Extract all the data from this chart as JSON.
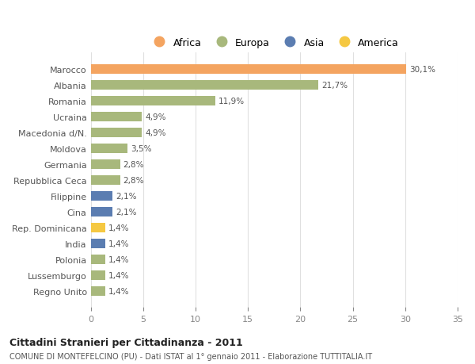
{
  "countries": [
    "Marocco",
    "Albania",
    "Romania",
    "Ucraina",
    "Macedonia d/N.",
    "Moldova",
    "Germania",
    "Repubblica Ceca",
    "Filippine",
    "Cina",
    "Rep. Dominicana",
    "India",
    "Polonia",
    "Lussemburgo",
    "Regno Unito"
  ],
  "values": [
    30.1,
    21.7,
    11.9,
    4.9,
    4.9,
    3.5,
    2.8,
    2.8,
    2.1,
    2.1,
    1.4,
    1.4,
    1.4,
    1.4,
    1.4
  ],
  "labels": [
    "30,1%",
    "21,7%",
    "11,9%",
    "4,9%",
    "4,9%",
    "3,5%",
    "2,8%",
    "2,8%",
    "2,1%",
    "2,1%",
    "1,4%",
    "1,4%",
    "1,4%",
    "1,4%",
    "1,4%"
  ],
  "colors": [
    "#F4A460",
    "#A8B87C",
    "#A8B87C",
    "#A8B87C",
    "#A8B87C",
    "#A8B87C",
    "#A8B87C",
    "#A8B87C",
    "#5B7DB1",
    "#5B7DB1",
    "#F5C842",
    "#5B7DB1",
    "#A8B87C",
    "#A8B87C",
    "#A8B87C"
  ],
  "legend_labels": [
    "Africa",
    "Europa",
    "Asia",
    "America"
  ],
  "legend_colors": [
    "#F4A460",
    "#A8B87C",
    "#5B7DB1",
    "#F5C842"
  ],
  "title": "Cittadini Stranieri per Cittadinanza - 2011",
  "subtitle": "COMUNE DI MONTEFELCINO (PU) - Dati ISTAT al 1° gennaio 2011 - Elaborazione TUTTITALIA.IT",
  "xlim": [
    0,
    35
  ],
  "xticks": [
    0,
    5,
    10,
    15,
    20,
    25,
    30,
    35
  ],
  "bg_color": "#ffffff",
  "grid_color": "#e0e0e0",
  "bar_height": 0.6
}
